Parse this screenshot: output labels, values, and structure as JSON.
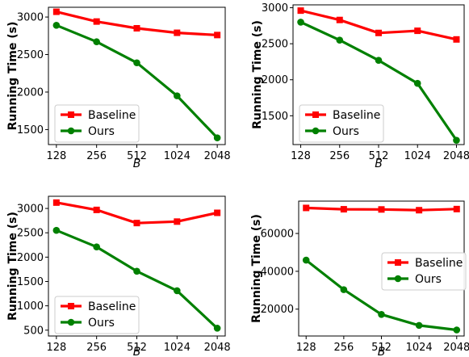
{
  "colors": {
    "baseline": "#ff0000",
    "ours": "#008000"
  },
  "chart_data": [
    {
      "type": "line",
      "x": [
        "128",
        "256",
        "512",
        "1024",
        "2048"
      ],
      "xlabel": "B",
      "ylabel": "Running Time (s)",
      "ylim": [
        1300,
        3130
      ],
      "yticks": [
        1500,
        2000,
        2500,
        3000
      ],
      "ytick_labels": [
        "1500",
        "2000",
        "2500",
        "3000"
      ],
      "legend_position": "lower-left",
      "series": [
        {
          "name": "Baseline",
          "marker": "square",
          "values": [
            3070,
            2940,
            2850,
            2790,
            2760
          ]
        },
        {
          "name": "Ours",
          "marker": "circle",
          "values": [
            2890,
            2670,
            2390,
            1950,
            1390
          ]
        }
      ]
    },
    {
      "type": "line",
      "x": [
        "128",
        "256",
        "512",
        "1024",
        "2048"
      ],
      "xlabel": "B",
      "ylabel": "Running Time (s)",
      "ylim": [
        1100,
        3040
      ],
      "yticks": [
        1500,
        2000,
        2500,
        3000
      ],
      "ytick_labels": [
        "1500",
        "2000",
        "2500",
        "3000"
      ],
      "legend_position": "lower-left",
      "series": [
        {
          "name": "Baseline",
          "marker": "square",
          "values": [
            2960,
            2830,
            2650,
            2680,
            2560
          ]
        },
        {
          "name": "Ours",
          "marker": "circle",
          "values": [
            2800,
            2550,
            2270,
            1950,
            1160
          ]
        }
      ]
    },
    {
      "type": "line",
      "x": [
        "128",
        "256",
        "512",
        "1024",
        "2048"
      ],
      "xlabel": "B",
      "ylabel": "Running Time (s)",
      "ylim": [
        380,
        3250
      ],
      "yticks": [
        500,
        1000,
        1500,
        2000,
        2500,
        3000
      ],
      "ytick_labels": [
        "500",
        "1000",
        "1500",
        "2000",
        "2500",
        "3000"
      ],
      "legend_position": "lower-left",
      "series": [
        {
          "name": "Baseline",
          "marker": "square",
          "values": [
            3120,
            2970,
            2700,
            2730,
            2910
          ]
        },
        {
          "name": "Ours",
          "marker": "circle",
          "values": [
            2550,
            2210,
            1710,
            1310,
            540
          ]
        }
      ]
    },
    {
      "type": "line",
      "x": [
        "128",
        "256",
        "512",
        "1024",
        "2048"
      ],
      "xlabel": "B",
      "ylabel": "Running Time (s)",
      "ylim": [
        5800,
        77100
      ],
      "yticks": [
        20000,
        40000,
        60000
      ],
      "ytick_labels": [
        "20000",
        "40000",
        "60000"
      ],
      "legend_position": "center-right",
      "series": [
        {
          "name": "Baseline",
          "marker": "square",
          "values": [
            73500,
            72800,
            72700,
            72300,
            72900
          ]
        },
        {
          "name": "Ours",
          "marker": "circle",
          "values": [
            45900,
            30300,
            17200,
            11400,
            9000
          ]
        }
      ]
    }
  ]
}
